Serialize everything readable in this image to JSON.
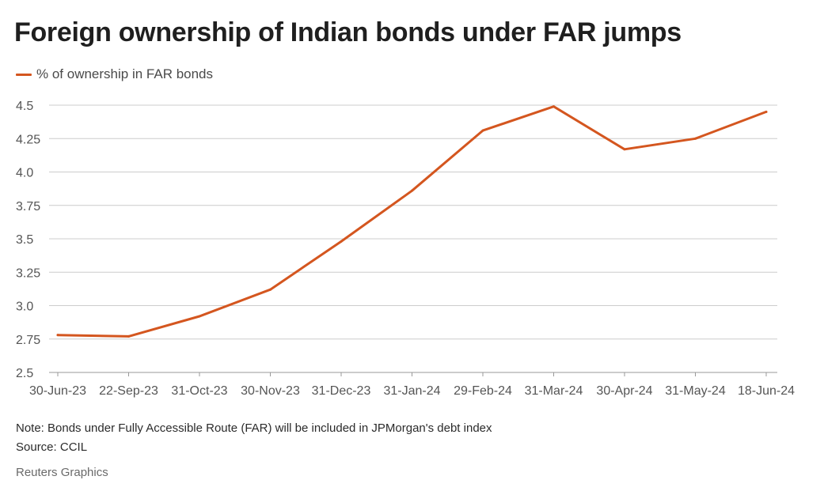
{
  "title": "Foreign ownership of Indian bonds under FAR jumps",
  "note": "Note: Bonds under Fully Accessible Route (FAR) will be included in JPMorgan's debt index",
  "source": "Source: CCIL",
  "credit": "Reuters Graphics",
  "colors": {
    "series": "#d4561f",
    "grid": "#cccccc",
    "axis_text": "#555555"
  },
  "chart_data": {
    "type": "line",
    "title": "Foreign ownership of Indian bonds under FAR jumps",
    "xlabel": "",
    "ylabel": "",
    "categories": [
      "30-Jun-23",
      "22-Sep-23",
      "31-Oct-23",
      "30-Nov-23",
      "31-Dec-23",
      "31-Jan-24",
      "29-Feb-24",
      "31-Mar-24",
      "30-Apr-24",
      "31-May-24",
      "18-Jun-24"
    ],
    "series": [
      {
        "name": "% of ownership in FAR bonds",
        "values": [
          2.78,
          2.77,
          2.92,
          3.12,
          3.48,
          3.86,
          4.31,
          4.49,
          4.17,
          4.25,
          4.45
        ]
      }
    ],
    "ylim": [
      2.5,
      4.5
    ],
    "yticks": [
      "2.5",
      "2.75",
      "3.0",
      "3.25",
      "3.5",
      "3.75",
      "4.0",
      "4.25",
      "4.5"
    ],
    "grid": true,
    "legend_position": "top-left"
  }
}
